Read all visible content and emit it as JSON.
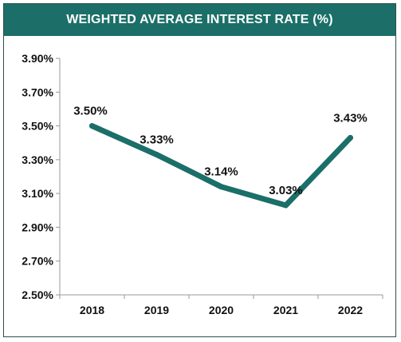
{
  "chart_data": {
    "type": "line",
    "title": "WEIGHTED AVERAGE INTEREST RATE (%)",
    "xlabel": "",
    "ylabel": "",
    "categories": [
      "2018",
      "2019",
      "2020",
      "2021",
      "2022"
    ],
    "series": [
      {
        "values": [
          3.5,
          3.33,
          3.14,
          3.03,
          3.43
        ],
        "labels": [
          "3.50%",
          "3.33%",
          "3.14%",
          "3.03%",
          "3.43%"
        ],
        "color": "#1b6f68"
      }
    ],
    "ylim": [
      2.5,
      3.9
    ],
    "yticks": [
      {
        "value": 3.9,
        "label": "3.90%"
      },
      {
        "value": 3.7,
        "label": "3.70%"
      },
      {
        "value": 3.5,
        "label": "3.50%"
      },
      {
        "value": 3.3,
        "label": "3.30%"
      },
      {
        "value": 3.1,
        "label": "3.10%"
      },
      {
        "value": 2.9,
        "label": "2.90%"
      },
      {
        "value": 2.7,
        "label": "2.70%"
      },
      {
        "value": 2.5,
        "label": "2.50%"
      }
    ],
    "grid": false,
    "legend": "none"
  },
  "colors": {
    "header": "#1b6f68",
    "line": "#1b6f68",
    "axis": "#999999",
    "border": "#2f4f4a"
  }
}
